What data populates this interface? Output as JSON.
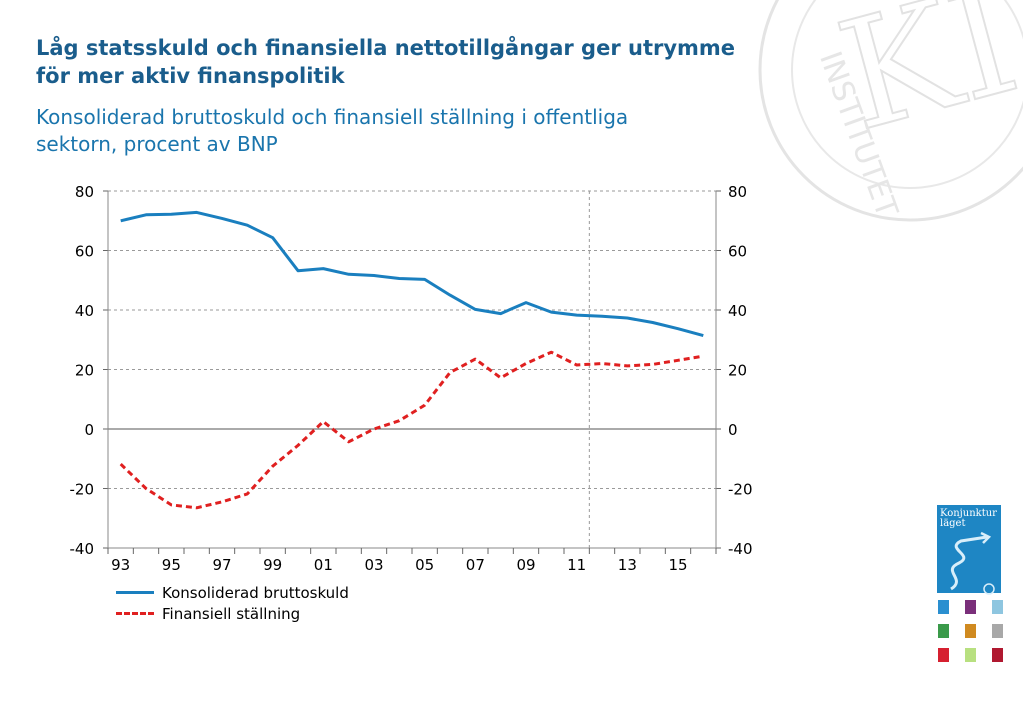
{
  "title": "Låg statsskuld och finansiella nettotillgångar ger utrymme för mer aktiv finanspolitik",
  "subtitle": "Konsoliderad bruttoskuld och finansiell ställning i offentliga sektorn, procent av BNP",
  "watermark": {
    "text": "KI",
    "ring_text": "INSTITUTET"
  },
  "cover": {
    "title_line1": "Konjunktur",
    "title_line2": "läget",
    "color": "#1e86c4"
  },
  "thumbnail_colors": [
    "#2a8fd0",
    "#7a2f7a",
    "#8ec6e0",
    "#3a9a4a",
    "#d08a20",
    "#a8a8a8",
    "#d62030",
    "#b8e080",
    "#b01830"
  ],
  "chart_data": {
    "type": "line",
    "x": [
      1993,
      1994,
      1995,
      1996,
      1997,
      1998,
      1999,
      2000,
      2001,
      2002,
      2003,
      2004,
      2005,
      2006,
      2007,
      2008,
      2009,
      2010,
      2011,
      2012,
      2013,
      2014,
      2015,
      2016
    ],
    "x_tick_labels": [
      "93",
      "95",
      "97",
      "99",
      "01",
      "03",
      "05",
      "07",
      "09",
      "11",
      "13",
      "15"
    ],
    "ylim": [
      -40,
      80
    ],
    "y_ticks": [
      "80",
      "60",
      "40",
      "20",
      "0",
      "-20",
      "-40"
    ],
    "forecast_divider_after": 2011,
    "grid": true,
    "series": [
      {
        "name": "Konsoliderad bruttoskuld",
        "color": "#1a7fbf",
        "style": "solid",
        "values": [
          70.0,
          72.0,
          72.2,
          72.8,
          70.8,
          68.5,
          64.3,
          53.2,
          53.9,
          52.0,
          51.6,
          50.6,
          50.3,
          45.0,
          40.2,
          38.8,
          42.5,
          39.3,
          38.3,
          37.9,
          37.3,
          35.8,
          33.7,
          31.4
        ]
      },
      {
        "name": "Finansiell ställning",
        "color": "#e02020",
        "style": "dashed",
        "values": [
          -11.8,
          -20.0,
          -25.5,
          -26.5,
          -24.5,
          -21.8,
          -12.5,
          -5.5,
          2.5,
          -4.3,
          0.0,
          2.8,
          8.0,
          19.0,
          23.5,
          17.2,
          22.0,
          25.8,
          21.5,
          22.0,
          21.2,
          21.7,
          23.1,
          24.5
        ]
      }
    ]
  }
}
